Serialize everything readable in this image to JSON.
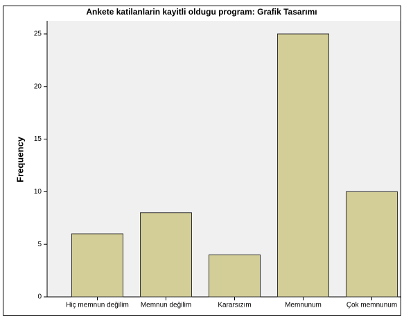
{
  "chart_data": {
    "type": "bar",
    "title": "Ankete katilanlarin kayitli oldugu program: Grafik Tasarımı",
    "y_label": "Frequency",
    "categories": [
      "Hiç memnun değilim",
      "Memnun değilim",
      "Kararsızım",
      "Memnunum",
      "Çok memnunum"
    ],
    "values": [
      6,
      8,
      4,
      25,
      10
    ],
    "color": "#d3ce97",
    "ylim": [
      0,
      26.25
    ],
    "yticks": [
      0,
      5,
      10,
      15,
      20,
      25
    ]
  }
}
